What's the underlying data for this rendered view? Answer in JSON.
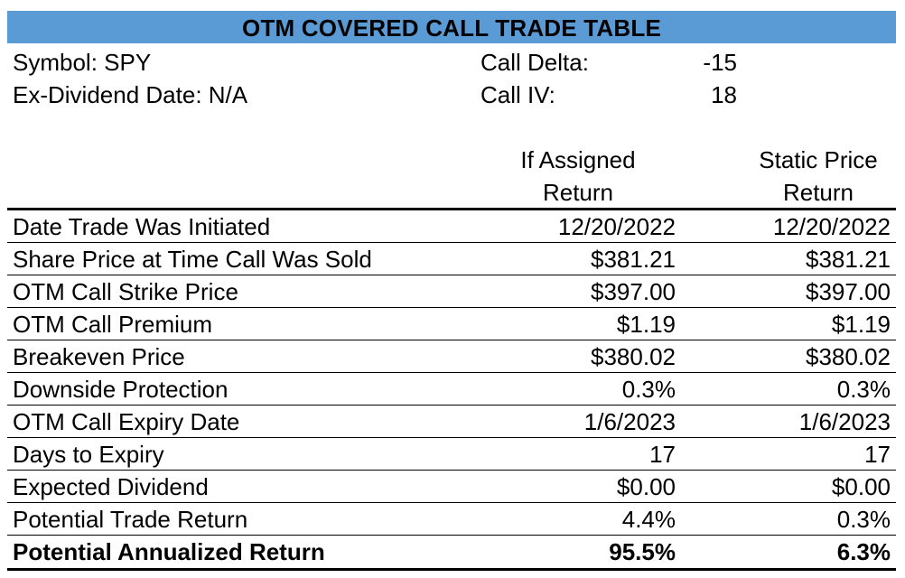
{
  "title": "OTM COVERED CALL TRADE TABLE",
  "info": {
    "symbol": "Symbol: SPY",
    "ex_dividend": "Ex-Dividend Date:  N/A",
    "call_delta_label": "Call Delta:",
    "call_delta_value": "-15",
    "call_iv_label": "Call IV:",
    "call_iv_value": "18"
  },
  "columns": {
    "if_assigned_line1": "If Assigned",
    "if_assigned_line2": "Return",
    "static_line1": "Static Price",
    "static_line2": "Return"
  },
  "rows": [
    {
      "label": "Date Trade Was Initiated",
      "if_assigned": "12/20/2022",
      "static": "12/20/2022"
    },
    {
      "label": "Share Price at Time Call Was Sold",
      "if_assigned": "$381.21",
      "static": "$381.21"
    },
    {
      "label": "OTM Call Strike Price",
      "if_assigned": "$397.00",
      "static": "$397.00"
    },
    {
      "label": "OTM Call Premium",
      "if_assigned": "$1.19",
      "static": "$1.19"
    },
    {
      "label": "Breakeven Price",
      "if_assigned": "$380.02",
      "static": "$380.02"
    },
    {
      "label": "Downside Protection",
      "if_assigned": "0.3%",
      "static": "0.3%"
    },
    {
      "label": "OTM Call Expiry Date",
      "if_assigned": "1/6/2023",
      "static": "1/6/2023"
    },
    {
      "label": "Days to Expiry",
      "if_assigned": "17",
      "static": "17"
    },
    {
      "label": "Expected Dividend",
      "if_assigned": "$0.00",
      "static": "$0.00"
    },
    {
      "label": "Potential Trade Return",
      "if_assigned": "4.4%",
      "static": "0.3%"
    },
    {
      "label": "Potential Annualized Return",
      "if_assigned": "95.5%",
      "static": "6.3%"
    }
  ],
  "colors": {
    "title_bar": "#5b9bd5"
  }
}
